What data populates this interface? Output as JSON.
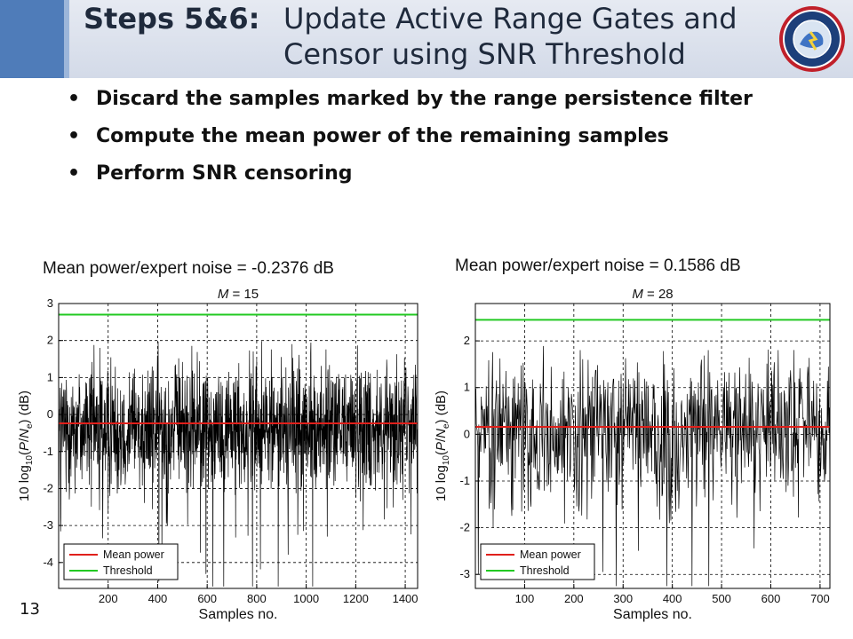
{
  "slide": {
    "title_bold": "Steps 5&6:",
    "title_line1": "Update Active Range Gates and",
    "title_line2": "Censor using SNR Threshold",
    "page_number": "13",
    "logo_icon": "national-severe-storms-laboratory-logo-icon"
  },
  "bullets": [
    "Discard the samples marked by the range persistence filter",
    "Compute the mean power of the remaining samples",
    "Perform SNR censoring"
  ],
  "captions": {
    "left": "Mean power/expert noise = -0.2376 dB",
    "right": "Mean power/expert noise = 0.1586 dB"
  },
  "colors": {
    "accent": "#4f7cb9",
    "mean": "#e0201b",
    "threshold": "#22c922",
    "signal": "#000000"
  },
  "chart_data": [
    {
      "type": "line",
      "title_var": "M",
      "title_value": "15",
      "xlabel": "Samples no.",
      "ylabel_parts": [
        "10 log",
        "10",
        "(",
        "P",
        "/",
        "N",
        "e",
        ") (dB)"
      ],
      "xlim": [
        0,
        1450
      ],
      "ylim": [
        -4.7,
        3.0
      ],
      "xticks": [
        200,
        400,
        600,
        800,
        1000,
        1200,
        1400
      ],
      "yticks": [
        -4,
        -3,
        -2,
        -1,
        0,
        1,
        2,
        3
      ],
      "n_samples": 1450,
      "noise_seed": 12345,
      "signal_mean": -0.3,
      "signal_sd": 1.1,
      "series": [
        {
          "name": "Mean power",
          "value": -0.2376,
          "color": "#e0201b"
        },
        {
          "name": "Threshold",
          "value": 2.7,
          "color": "#22c922"
        }
      ],
      "legend": "bottom-left",
      "grid": true
    },
    {
      "type": "line",
      "title_var": "M",
      "title_value": "28",
      "xlabel": "Samples no.",
      "ylabel_parts": [
        "10 log",
        "10",
        "(",
        "P",
        "/",
        "N",
        "e",
        ") (dB)"
      ],
      "xlim": [
        0,
        720
      ],
      "ylim": [
        -3.3,
        2.8
      ],
      "xticks": [
        100,
        200,
        300,
        400,
        500,
        600,
        700
      ],
      "yticks": [
        -3,
        -2,
        -1,
        0,
        1,
        2
      ],
      "n_samples": 720,
      "noise_seed": 987,
      "signal_mean": 0.1,
      "signal_sd": 1.0,
      "series": [
        {
          "name": "Mean power",
          "value": 0.1586,
          "color": "#e0201b"
        },
        {
          "name": "Threshold",
          "value": 2.45,
          "color": "#22c922"
        }
      ],
      "legend": "bottom-left",
      "grid": true
    }
  ]
}
